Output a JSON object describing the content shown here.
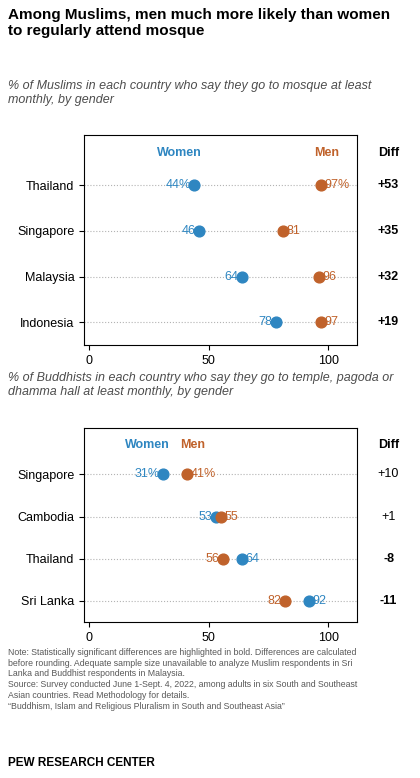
{
  "title": "Among Muslims, men much more likely than women\nto regularly attend mosque",
  "note": "Note: Statistically significant differences are highlighted in bold. Differences are calculated\nbefore rounding. Adequate sample size unavailable to analyze Muslim respondents in Sri\nLanka and Buddhist respondents in Malaysia.\nSource: Survey conducted June 1-Sept. 4, 2022, among adults in six South and Southeast\nAsian countries. Read Methodology for details.\n“Buddhism, Islam and Religious Pluralism in South and Southeast Asia”",
  "source": "PEW RESEARCH CENTER",
  "chart_data": [
    {
      "type": "dot",
      "subtitle": "% of Muslims in each country who say they go to mosque at least monthly, by gender",
      "categories": [
        "Thailand",
        "Singapore",
        "Malaysia",
        "Indonesia"
      ],
      "series": [
        {
          "name": "Women",
          "color": "#2E86C1",
          "values": [
            44,
            46,
            64,
            78
          ],
          "value_labels": [
            "44%",
            "46",
            "64",
            "78"
          ]
        },
        {
          "name": "Men",
          "color": "#C0622B",
          "values": [
            97,
            81,
            96,
            97
          ],
          "value_labels": [
            "97%",
            "81",
            "96",
            "97"
          ]
        }
      ],
      "diff": {
        "title": "Diff",
        "values": [
          53,
          35,
          32,
          19
        ],
        "value_labels": [
          "+53",
          "+35",
          "+32",
          "+19"
        ],
        "significant": [
          true,
          true,
          true,
          true
        ]
      },
      "xlim": [
        -2,
        112
      ],
      "xticks": [
        0,
        50,
        100
      ],
      "grid": true,
      "data_labels": true
    },
    {
      "type": "dot",
      "subtitle": "% of Buddhists in each country who say they go to temple, pagoda or dhamma hall at least monthly, by gender",
      "categories": [
        "Singapore",
        "Cambodia",
        "Thailand",
        "Sri Lanka"
      ],
      "series": [
        {
          "name": "Women",
          "color": "#2E86C1",
          "values": [
            31,
            53,
            64,
            92
          ],
          "value_labels": [
            "31%",
            "53",
            "64",
            "92"
          ]
        },
        {
          "name": "Men",
          "color": "#C0622B",
          "values": [
            41,
            55,
            56,
            82
          ],
          "value_labels": [
            "41%",
            "55",
            "56",
            "82"
          ]
        }
      ],
      "diff": {
        "title": "Diff",
        "values": [
          10,
          1,
          -8,
          -11
        ],
        "value_labels": [
          "+10",
          "+1",
          "-8",
          "-11"
        ],
        "significant": [
          false,
          false,
          true,
          true
        ]
      },
      "xlim": [
        -2,
        112
      ],
      "xticks": [
        0,
        50,
        100
      ],
      "grid": true,
      "data_labels": true
    }
  ]
}
